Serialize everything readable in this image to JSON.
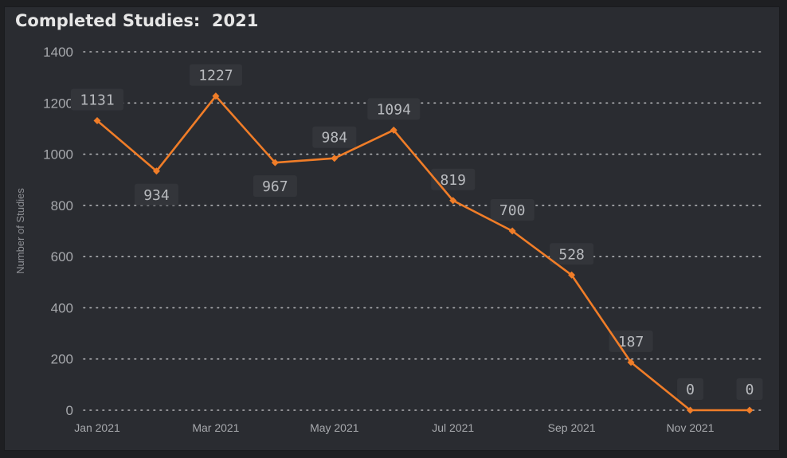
{
  "card": {
    "title": "Completed Studies:  2021"
  },
  "colors": {
    "line": "#f07d28",
    "grid": "#c9cacd",
    "label_bg": "#33353a"
  },
  "chart_data": {
    "type": "line",
    "title": "Completed Studies:  2021",
    "xlabel": "",
    "ylabel": "Number of Studies",
    "x": [
      "Jan 2021",
      "Feb 2021",
      "Mar 2021",
      "Apr 2021",
      "May 2021",
      "Jun 2021",
      "Jul 2021",
      "Aug 2021",
      "Sep 2021",
      "Oct 2021",
      "Nov 2021",
      "Dec 2021"
    ],
    "x_tick_labels": [
      "Jan 2021",
      "Mar 2021",
      "May 2021",
      "Jul 2021",
      "Sep 2021",
      "Nov 2021"
    ],
    "values": [
      1131,
      934,
      1227,
      967,
      984,
      1094,
      819,
      700,
      528,
      187,
      0,
      0
    ],
    "data_labels": [
      "1131",
      "934",
      "1227",
      "967",
      "984",
      "1094",
      "819",
      "700",
      "528",
      "187",
      "0",
      "0"
    ],
    "label_position": [
      "above",
      "below",
      "above",
      "below",
      "above",
      "above",
      "above",
      "above",
      "above",
      "above",
      "above",
      "above"
    ],
    "y_ticks": [
      0,
      200,
      400,
      600,
      800,
      1000,
      1200,
      1400
    ],
    "ylim": [
      0,
      1400
    ],
    "grid": true,
    "legend": "none"
  }
}
